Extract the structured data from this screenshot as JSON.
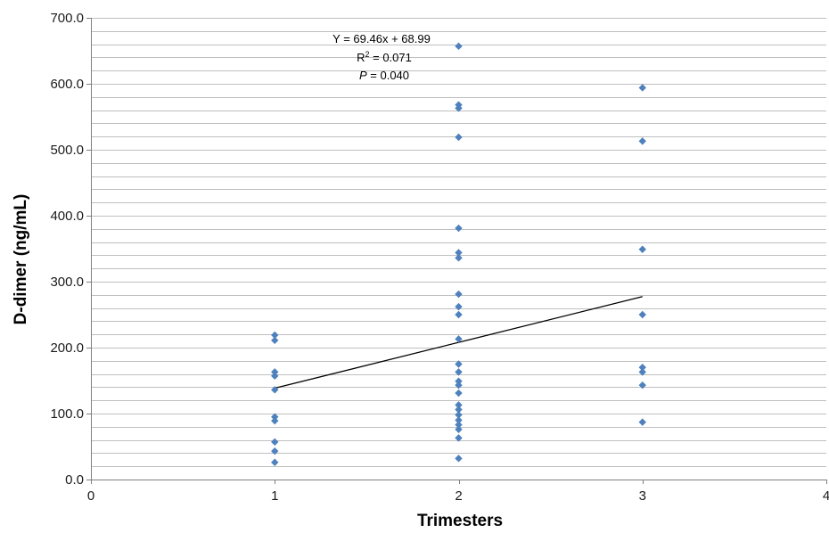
{
  "chart_data": {
    "type": "scatter",
    "title": "",
    "xlabel": "Trimesters",
    "ylabel": "D-dimer (ng/mL)",
    "xlim": [
      0,
      4
    ],
    "ylim": [
      0,
      700
    ],
    "x_ticks": [
      "0",
      "1",
      "2",
      "3",
      "4"
    ],
    "y_ticks": [
      "0.0",
      "100.0",
      "200.0",
      "300.0",
      "400.0",
      "500.0",
      "600.0",
      "700.0"
    ],
    "y_major_step": 100,
    "y_minor_step": 20,
    "grid": true,
    "marker": "diamond",
    "marker_color": "#4F81BD",
    "trendline_color": "#000000",
    "grid_color": "#BFBFBF",
    "points": [
      {
        "x": 1,
        "y": 219
      },
      {
        "x": 1,
        "y": 211
      },
      {
        "x": 1,
        "y": 163
      },
      {
        "x": 1,
        "y": 157
      },
      {
        "x": 1,
        "y": 136
      },
      {
        "x": 1,
        "y": 95
      },
      {
        "x": 1,
        "y": 89
      },
      {
        "x": 1,
        "y": 57
      },
      {
        "x": 1,
        "y": 43
      },
      {
        "x": 1,
        "y": 26
      },
      {
        "x": 2,
        "y": 657
      },
      {
        "x": 2,
        "y": 568
      },
      {
        "x": 2,
        "y": 563
      },
      {
        "x": 2,
        "y": 519
      },
      {
        "x": 2,
        "y": 381
      },
      {
        "x": 2,
        "y": 344
      },
      {
        "x": 2,
        "y": 336
      },
      {
        "x": 2,
        "y": 281
      },
      {
        "x": 2,
        "y": 262
      },
      {
        "x": 2,
        "y": 250
      },
      {
        "x": 2,
        "y": 213
      },
      {
        "x": 2,
        "y": 175
      },
      {
        "x": 2,
        "y": 163
      },
      {
        "x": 2,
        "y": 149
      },
      {
        "x": 2,
        "y": 143
      },
      {
        "x": 2,
        "y": 131
      },
      {
        "x": 2,
        "y": 113
      },
      {
        "x": 2,
        "y": 106
      },
      {
        "x": 2,
        "y": 98
      },
      {
        "x": 2,
        "y": 90
      },
      {
        "x": 2,
        "y": 83
      },
      {
        "x": 2,
        "y": 76
      },
      {
        "x": 2,
        "y": 63
      },
      {
        "x": 2,
        "y": 32
      },
      {
        "x": 3,
        "y": 594
      },
      {
        "x": 3,
        "y": 513
      },
      {
        "x": 3,
        "y": 349
      },
      {
        "x": 3,
        "y": 250
      },
      {
        "x": 3,
        "y": 170
      },
      {
        "x": 3,
        "y": 163
      },
      {
        "x": 3,
        "y": 143
      },
      {
        "x": 3,
        "y": 87
      }
    ],
    "trendline": {
      "slope": 69.46,
      "intercept": 68.99,
      "x_range": [
        1,
        3
      ]
    },
    "annotations": {
      "equation": "Y = 69.46x + 68.99",
      "r2_prefix": "R",
      "r2_sup": "2",
      "r2_value": " = 0.071",
      "p_prefix": "P",
      "p_value": " = 0.040"
    }
  }
}
